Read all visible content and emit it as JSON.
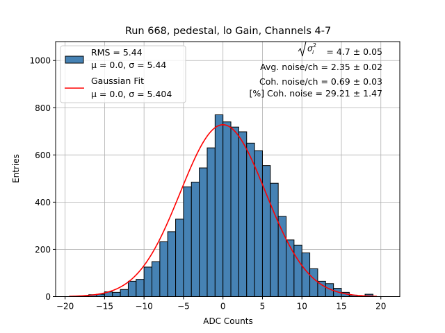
{
  "chart_data": {
    "type": "bar",
    "title": "Run 668, pedestal, lo Gain, Channels 4-7",
    "xlabel": "ADC Counts",
    "ylabel": "Entries",
    "xlim": [
      -21.2,
      22.4
    ],
    "ylim": [
      0,
      1080
    ],
    "xticks": [
      -20,
      -15,
      -10,
      -5,
      0,
      5,
      10,
      15,
      20
    ],
    "yticks": [
      0,
      200,
      400,
      600,
      800,
      1000
    ],
    "grid": true,
    "bar_color": "#4682b4",
    "fit_color": "#ff0000",
    "bin_width": 1,
    "bins": [
      {
        "x0": -18,
        "count": 3
      },
      {
        "x0": -17,
        "count": 8
      },
      {
        "x0": -16,
        "count": 10
      },
      {
        "x0": -15,
        "count": 20
      },
      {
        "x0": -14,
        "count": 18
      },
      {
        "x0": -13,
        "count": 30
      },
      {
        "x0": -12,
        "count": 65
      },
      {
        "x0": -11,
        "count": 73
      },
      {
        "x0": -10,
        "count": 125
      },
      {
        "x0": -9,
        "count": 148
      },
      {
        "x0": -8,
        "count": 232
      },
      {
        "x0": -7,
        "count": 275
      },
      {
        "x0": -6,
        "count": 328
      },
      {
        "x0": -5,
        "count": 465
      },
      {
        "x0": -4,
        "count": 485
      },
      {
        "x0": -3,
        "count": 545
      },
      {
        "x0": -2,
        "count": 630
      },
      {
        "x0": -1,
        "count": 770
      },
      {
        "x0": 0,
        "count": 740
      },
      {
        "x0": 1,
        "count": 718
      },
      {
        "x0": 2,
        "count": 698
      },
      {
        "x0": 3,
        "count": 650
      },
      {
        "x0": 4,
        "count": 618
      },
      {
        "x0": 5,
        "count": 555
      },
      {
        "x0": 6,
        "count": 480
      },
      {
        "x0": 7,
        "count": 340
      },
      {
        "x0": 8,
        "count": 240
      },
      {
        "x0": 9,
        "count": 218
      },
      {
        "x0": 10,
        "count": 185
      },
      {
        "x0": 11,
        "count": 118
      },
      {
        "x0": 12,
        "count": 65
      },
      {
        "x0": 13,
        "count": 55
      },
      {
        "x0": 14,
        "count": 35
      },
      {
        "x0": 15,
        "count": 18
      },
      {
        "x0": 16,
        "count": 6
      },
      {
        "x0": 18,
        "count": 10
      }
    ],
    "fit": {
      "mu": 0.0,
      "sigma": 5.404,
      "amplitude": 728,
      "x_range": [
        -19.5,
        19.5
      ]
    },
    "legend": {
      "position": "upper-left",
      "entries": [
        {
          "kind": "patch",
          "line1": "RMS = 5.44",
          "line2": "μ = 0.0, σ = 5.44"
        },
        {
          "kind": "line",
          "line1": "Gaussian Fit",
          "line2": "μ = 0.0, σ = 5.404"
        }
      ]
    },
    "annotations": {
      "sigma_label": "= 4.7 ± 0.05",
      "avg_noise": "Avg. noise/ch = 2.35 ± 0.02",
      "coh_noise": "Coh. noise/ch = 0.69 ± 0.03",
      "coh_percent": "[%] Coh. noise = 29.21 ± 1.47"
    }
  }
}
